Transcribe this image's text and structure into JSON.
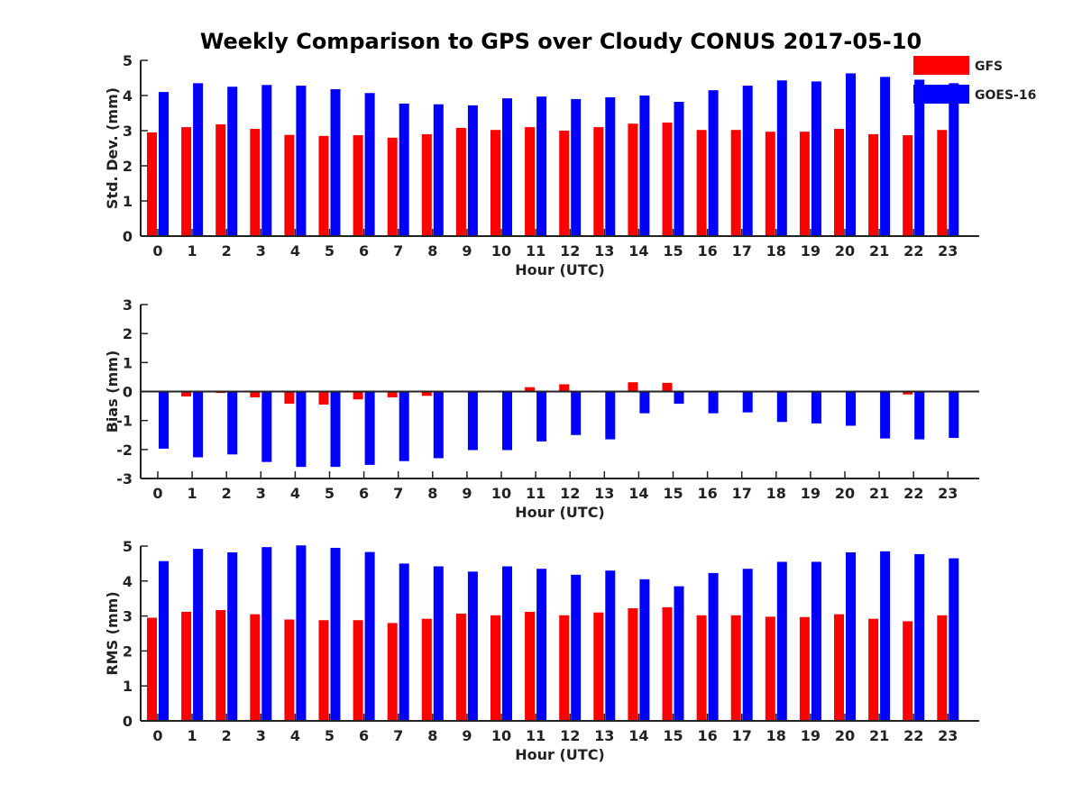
{
  "title": "Weekly Comparison to GPS over Cloudy CONUS 2017-05-10",
  "legend": {
    "placement": "top-right",
    "entries": [
      {
        "name": "GFS",
        "color": "#ff0000"
      },
      {
        "name": "GOES-16",
        "color": "#0000ff"
      }
    ]
  },
  "chart_data": [
    {
      "type": "bar",
      "ylabel": "Std. Dev. (mm)",
      "xlabel": "Hour (UTC)",
      "ylim": [
        0,
        5
      ],
      "yticks": [
        0,
        1,
        2,
        3,
        4,
        5
      ],
      "grid": false,
      "categories": [
        "0",
        "1",
        "2",
        "3",
        "4",
        "5",
        "6",
        "7",
        "8",
        "9",
        "10",
        "11",
        "12",
        "13",
        "14",
        "15",
        "16",
        "17",
        "18",
        "19",
        "20",
        "21",
        "22",
        "23"
      ],
      "series": [
        {
          "name": "GFS",
          "color": "#ff0000",
          "values": [
            2.95,
            3.1,
            3.18,
            3.05,
            2.88,
            2.85,
            2.87,
            2.8,
            2.9,
            3.08,
            3.02,
            3.1,
            3.0,
            3.1,
            3.2,
            3.23,
            3.02,
            3.02,
            2.97,
            2.97,
            3.05,
            2.9,
            2.87,
            3.02
          ]
        },
        {
          "name": "GOES-16",
          "color": "#0000ff",
          "values": [
            4.1,
            4.35,
            4.25,
            4.3,
            4.28,
            4.18,
            4.07,
            3.77,
            3.75,
            3.72,
            3.92,
            3.97,
            3.9,
            3.95,
            4.0,
            3.82,
            4.15,
            4.28,
            4.43,
            4.4,
            4.63,
            4.53,
            4.45,
            4.35
          ]
        }
      ]
    },
    {
      "type": "bar",
      "ylabel": "Bias (mm)",
      "xlabel": "Hour (UTC)",
      "ylim": [
        -3,
        3
      ],
      "yticks": [
        -3,
        -2,
        -1,
        0,
        1,
        2,
        3
      ],
      "grid": false,
      "zero_line": true,
      "categories": [
        "0",
        "1",
        "2",
        "3",
        "4",
        "5",
        "6",
        "7",
        "8",
        "9",
        "10",
        "11",
        "12",
        "13",
        "14",
        "15",
        "16",
        "17",
        "18",
        "19",
        "20",
        "21",
        "22",
        "23"
      ],
      "series": [
        {
          "name": "GFS",
          "color": "#ff0000",
          "values": [
            -0.02,
            -0.17,
            -0.05,
            -0.2,
            -0.42,
            -0.45,
            -0.27,
            -0.2,
            -0.15,
            -0.02,
            -0.02,
            0.15,
            0.25,
            0.02,
            0.32,
            0.3,
            0.02,
            0.0,
            0.0,
            -0.03,
            0.0,
            -0.03,
            -0.1,
            0.0
          ]
        },
        {
          "name": "GOES-16",
          "color": "#0000ff",
          "values": [
            -1.97,
            -2.27,
            -2.17,
            -2.43,
            -2.6,
            -2.6,
            -2.53,
            -2.4,
            -2.3,
            -2.02,
            -2.02,
            -1.72,
            -1.5,
            -1.65,
            -0.75,
            -0.42,
            -0.75,
            -0.72,
            -1.05,
            -1.1,
            -1.18,
            -1.62,
            -1.65,
            -1.6
          ]
        }
      ]
    },
    {
      "type": "bar",
      "ylabel": "RMS (mm)",
      "xlabel": "Hour (UTC)",
      "ylim": [
        0,
        5
      ],
      "yticks": [
        0,
        1,
        2,
        3,
        4,
        5
      ],
      "grid": false,
      "categories": [
        "0",
        "1",
        "2",
        "3",
        "4",
        "5",
        "6",
        "7",
        "8",
        "9",
        "10",
        "11",
        "12",
        "13",
        "14",
        "15",
        "16",
        "17",
        "18",
        "19",
        "20",
        "21",
        "22",
        "23"
      ],
      "series": [
        {
          "name": "GFS",
          "color": "#ff0000",
          "values": [
            2.95,
            3.12,
            3.17,
            3.05,
            2.9,
            2.88,
            2.88,
            2.8,
            2.92,
            3.07,
            3.02,
            3.12,
            3.02,
            3.1,
            3.22,
            3.25,
            3.02,
            3.02,
            2.98,
            2.97,
            3.05,
            2.92,
            2.85,
            3.02
          ]
        },
        {
          "name": "GOES-16",
          "color": "#0000ff",
          "values": [
            4.57,
            4.92,
            4.82,
            4.97,
            5.02,
            4.95,
            4.83,
            4.5,
            4.42,
            4.27,
            4.42,
            4.35,
            4.18,
            4.3,
            4.05,
            3.85,
            4.23,
            4.35,
            4.55,
            4.55,
            4.82,
            4.85,
            4.77,
            4.65
          ]
        }
      ]
    }
  ]
}
